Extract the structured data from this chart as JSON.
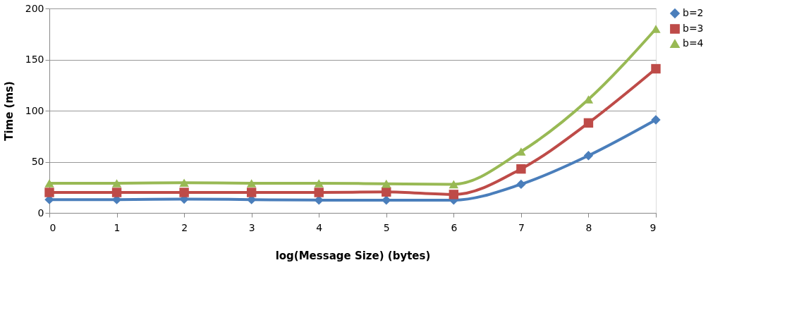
{
  "chart_data": {
    "type": "line",
    "xlabel": "log(Message Size) (bytes)",
    "ylabel": "Time (ms)",
    "x": [
      0,
      1,
      2,
      3,
      4,
      5,
      6,
      7,
      8,
      9
    ],
    "xlim": [
      0,
      9
    ],
    "xticks": [
      0,
      1,
      2,
      3,
      4,
      5,
      6,
      7,
      8,
      9
    ],
    "ylim": [
      0,
      200
    ],
    "yticks": [
      0,
      50,
      100,
      150,
      200
    ],
    "grid": "y",
    "legend": "right",
    "line_style": "solid",
    "series": [
      {
        "name": "b=2",
        "color": "#4a7ebb",
        "marker": "diamond",
        "values": [
          13,
          13,
          13.5,
          13,
          12.5,
          12.5,
          12.5,
          28,
          56,
          91
        ]
      },
      {
        "name": "b=3",
        "color": "#be4b48",
        "marker": "square",
        "values": [
          20,
          20,
          20,
          20,
          20,
          20.5,
          18,
          43,
          88,
          141
        ]
      },
      {
        "name": "b=4",
        "color": "#98b954",
        "marker": "triangle",
        "values": [
          29,
          29,
          29.5,
          29,
          29,
          28.5,
          28,
          60,
          111,
          180
        ]
      }
    ]
  }
}
